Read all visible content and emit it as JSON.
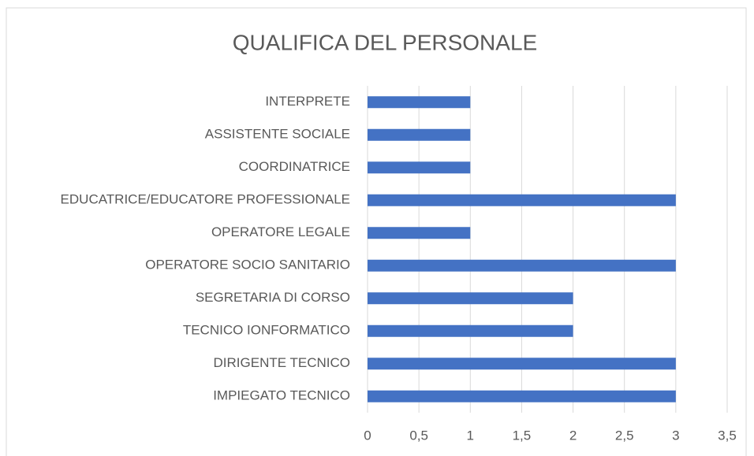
{
  "chart_data": {
    "type": "bar",
    "orientation": "horizontal",
    "title": "QUALIFICA DEL PERSONALE",
    "categories": [
      "INTERPRETE",
      "ASSISTENTE SOCIALE",
      "COORDINATRICE",
      "EDUCATRICE/EDUCATORE PROFESSIONALE",
      "OPERATORE LEGALE",
      "OPERATORE SOCIO SANITARIO",
      "SEGRETARIA DI CORSO",
      "TECNICO IONFORMATICO",
      "DIRIGENTE TECNICO",
      "IMPIEGATO TECNICO"
    ],
    "values": [
      1,
      1,
      1,
      3,
      1,
      3,
      2,
      2,
      3,
      3
    ],
    "color": "#4472c4",
    "xlim": [
      0,
      3.5
    ],
    "xticks": [
      0,
      {
        "value": 0.5,
        "label": "0,5"
      },
      1,
      {
        "value": 1.5,
        "label": "1,5"
      },
      2,
      {
        "value": 2.5,
        "label": "2,5"
      },
      3,
      {
        "value": 3.5,
        "label": "3,5"
      }
    ],
    "grid": true
  }
}
